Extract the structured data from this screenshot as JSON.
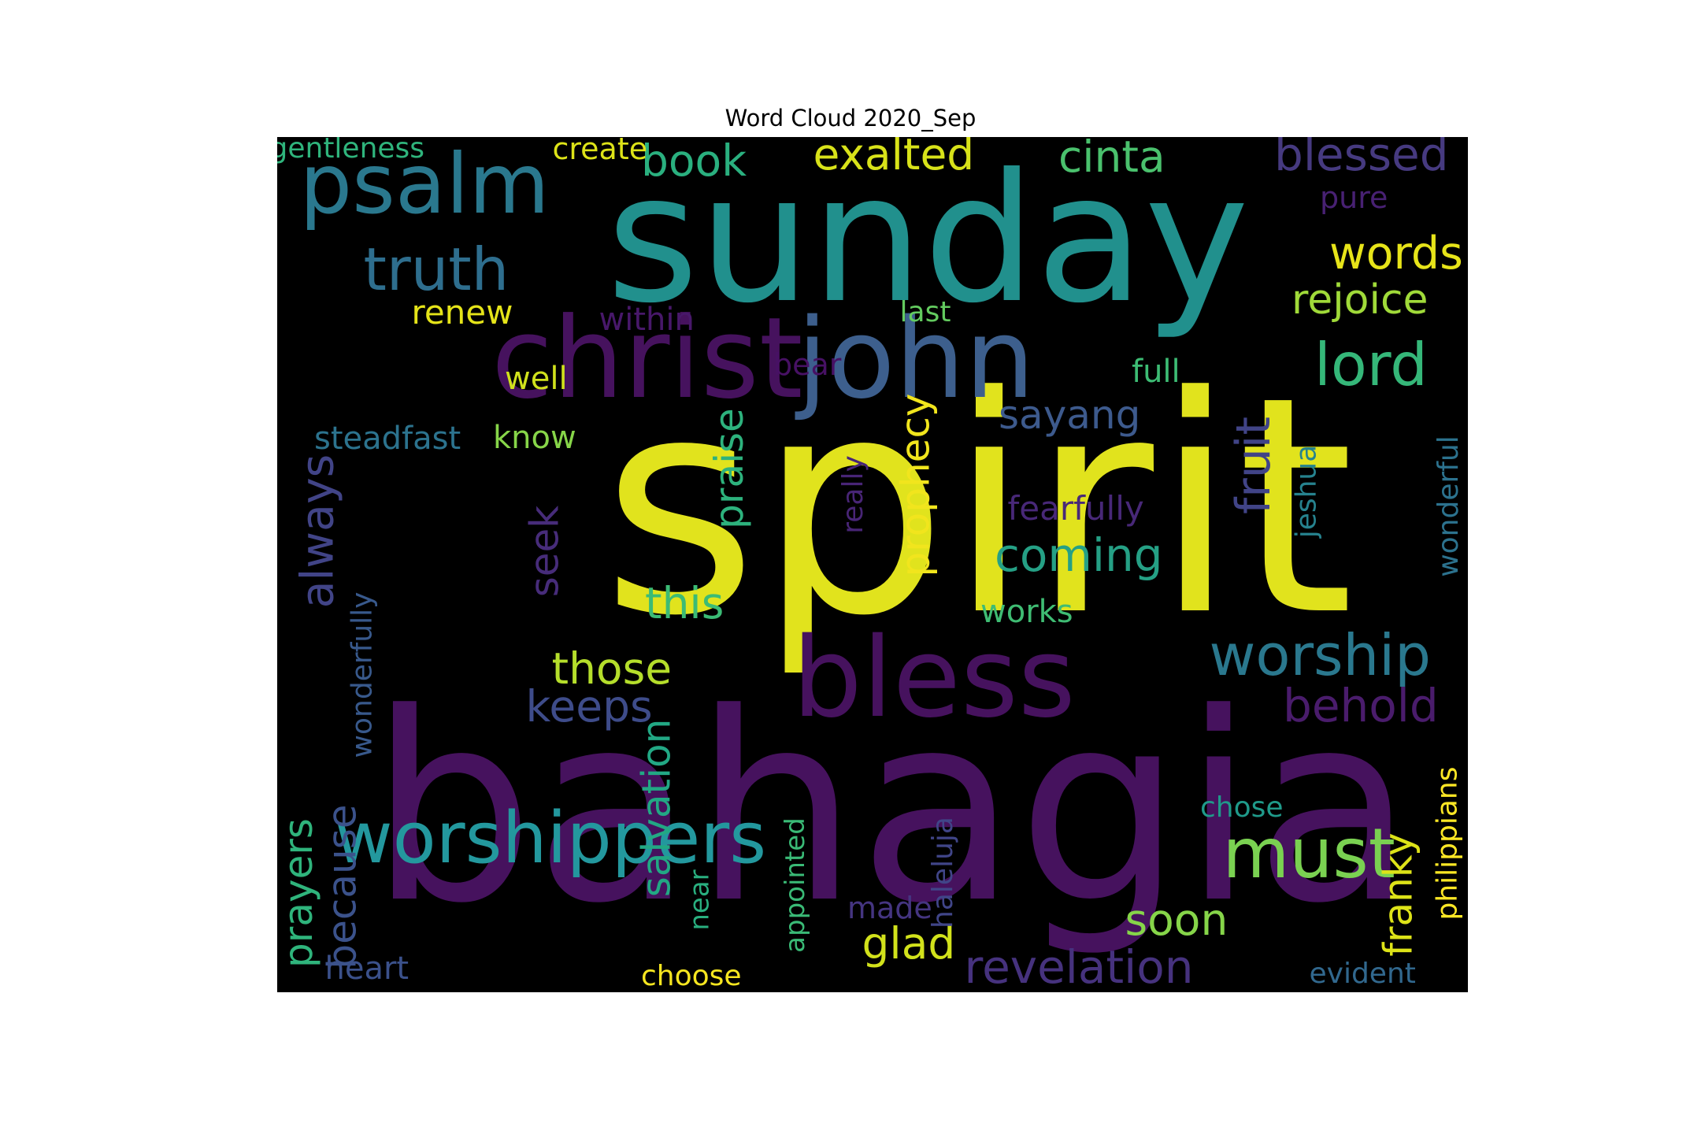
{
  "title": "Word Cloud 2020_Sep",
  "background": "#000000",
  "words": [
    {
      "text": "spirit",
      "color": "#e1e31d",
      "vertical": false
    },
    {
      "text": "bahagia",
      "color": "#46125e",
      "vertical": false
    },
    {
      "text": "sunday",
      "color": "#21908d",
      "vertical": false
    },
    {
      "text": "christ",
      "color": "#46125e",
      "vertical": false
    },
    {
      "text": "john",
      "color": "#3d5f8d",
      "vertical": false
    },
    {
      "text": "bless",
      "color": "#46125e",
      "vertical": false
    },
    {
      "text": "psalm",
      "color": "#2a788e",
      "vertical": false
    },
    {
      "text": "worshippers",
      "color": "#23989e",
      "vertical": false
    },
    {
      "text": "must",
      "color": "#7ad151",
      "vertical": false
    },
    {
      "text": "worship",
      "color": "#2a788e",
      "vertical": false
    },
    {
      "text": "truth",
      "color": "#2e6e8e",
      "vertical": false
    },
    {
      "text": "lord",
      "color": "#35b779",
      "vertical": false
    },
    {
      "text": "blessed",
      "color": "#463a80",
      "vertical": false
    },
    {
      "text": "exalted",
      "color": "#d8e219",
      "vertical": false
    },
    {
      "text": "cinta",
      "color": "#4ac16d",
      "vertical": false
    },
    {
      "text": "book",
      "color": "#2ab07f",
      "vertical": false
    },
    {
      "text": "words",
      "color": "#e7e419",
      "vertical": false
    },
    {
      "text": "rejoice",
      "color": "#a0da39",
      "vertical": false
    },
    {
      "text": "revelation",
      "color": "#46327e",
      "vertical": false
    },
    {
      "text": "behold",
      "color": "#4a1c6c",
      "vertical": false
    },
    {
      "text": "coming",
      "color": "#25a085",
      "vertical": false
    },
    {
      "text": "those",
      "color": "#b5de2b",
      "vertical": false
    },
    {
      "text": "this",
      "color": "#3bbb75",
      "vertical": false
    },
    {
      "text": "keeps",
      "color": "#3e4c8a",
      "vertical": false
    },
    {
      "text": "soon",
      "color": "#86d549",
      "vertical": false
    },
    {
      "text": "glad",
      "color": "#d2e21b",
      "vertical": false
    },
    {
      "text": "sayang",
      "color": "#3d5a8d",
      "vertical": false
    },
    {
      "text": "fruit",
      "color": "#414487",
      "vertical": true
    },
    {
      "text": "always",
      "color": "#414487",
      "vertical": true
    },
    {
      "text": "praise",
      "color": "#2db27d",
      "vertical": true
    },
    {
      "text": "prophecy",
      "color": "#f1e51d",
      "vertical": true
    },
    {
      "text": "seek",
      "color": "#472c7a",
      "vertical": true
    },
    {
      "text": "salvation",
      "color": "#22a884",
      "vertical": true
    },
    {
      "text": "prayers",
      "color": "#2fb47c",
      "vertical": true
    },
    {
      "text": "because",
      "color": "#3b528b",
      "vertical": true
    },
    {
      "text": "franky",
      "color": "#dde318",
      "vertical": true
    },
    {
      "text": "renew",
      "color": "#e5e419",
      "vertical": false
    },
    {
      "text": "within",
      "color": "#48186a",
      "vertical": false
    },
    {
      "text": "last",
      "color": "#63cb5f",
      "vertical": false
    },
    {
      "text": "well",
      "color": "#d0e11c",
      "vertical": false
    },
    {
      "text": "bear",
      "color": "#471164",
      "vertical": false
    },
    {
      "text": "full",
      "color": "#3dbc74",
      "vertical": false
    },
    {
      "text": "steadfast",
      "color": "#2c738e",
      "vertical": false
    },
    {
      "text": "know",
      "color": "#87d549",
      "vertical": false
    },
    {
      "text": "fearfully",
      "color": "#482878",
      "vertical": false
    },
    {
      "text": "works",
      "color": "#3fbc73",
      "vertical": false
    },
    {
      "text": "gentleness",
      "color": "#2fb47c",
      "vertical": false
    },
    {
      "text": "create",
      "color": "#dde318",
      "vertical": false
    },
    {
      "text": "pure",
      "color": "#482173",
      "vertical": false
    },
    {
      "text": "heart",
      "color": "#3b518b",
      "vertical": false
    },
    {
      "text": "choose",
      "color": "#f6e620",
      "vertical": false
    },
    {
      "text": "made",
      "color": "#453581",
      "vertical": false
    },
    {
      "text": "chose",
      "color": "#1f9a8a",
      "vertical": false
    },
    {
      "text": "evident",
      "color": "#31688e",
      "vertical": false
    },
    {
      "text": "wonderfully",
      "color": "#38598c",
      "vertical": true
    },
    {
      "text": "really",
      "color": "#482576",
      "vertical": true
    },
    {
      "text": "jeshua",
      "color": "#26828e",
      "vertical": true
    },
    {
      "text": "wonderful",
      "color": "#2c728e",
      "vertical": true
    },
    {
      "text": "appointed",
      "color": "#3aba76",
      "vertical": true
    },
    {
      "text": "near",
      "color": "#29af7f",
      "vertical": true
    },
    {
      "text": "haleluja",
      "color": "#404588",
      "vertical": true
    },
    {
      "text": "philippians",
      "color": "#fde725",
      "vertical": true
    }
  ]
}
